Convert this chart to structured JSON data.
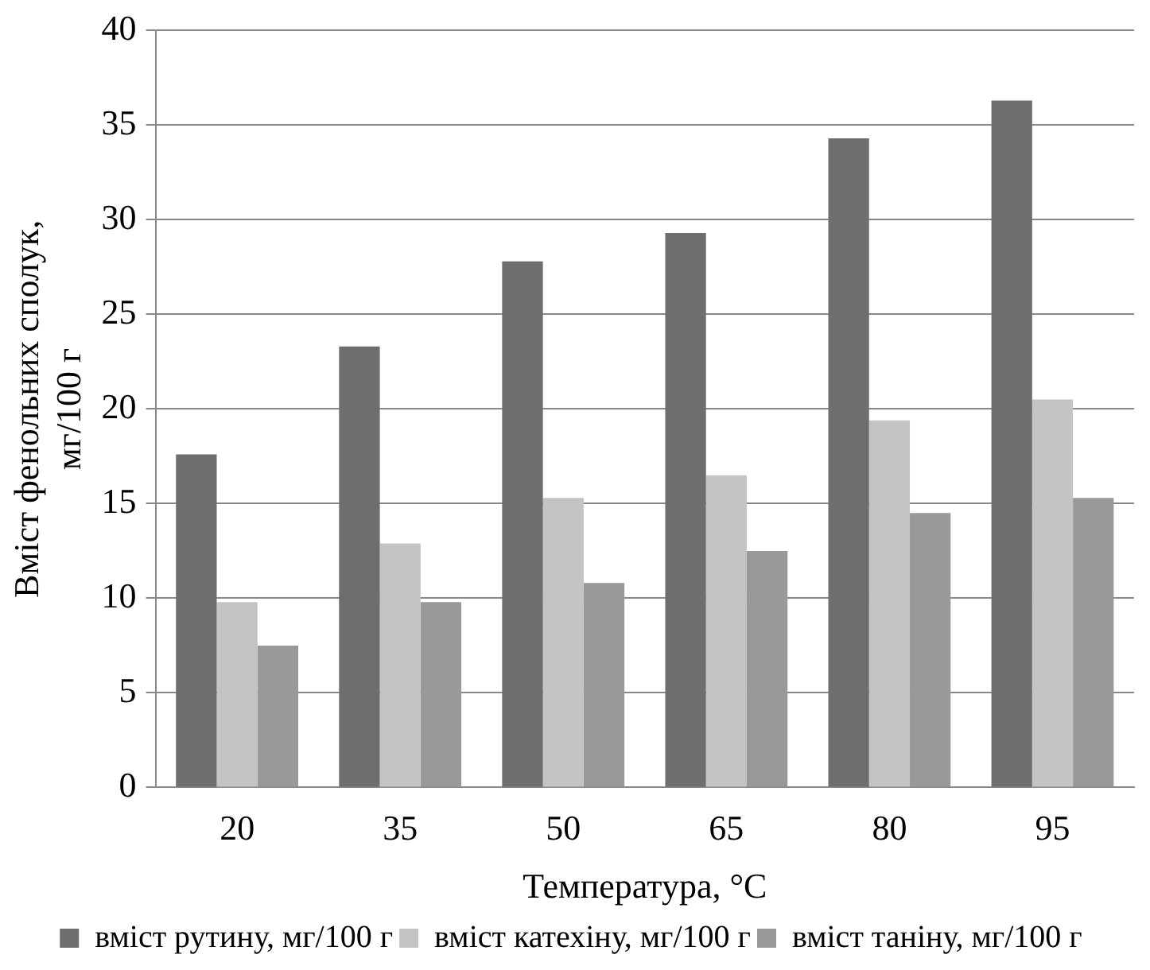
{
  "chart_data": {
    "type": "bar",
    "xlabel": "Температура, °C",
    "ylabel": "Вміст фенольних сполук, мг/100 г",
    "categories": [
      "20",
      "35",
      "50",
      "65",
      "80",
      "95"
    ],
    "series": [
      {
        "name": "вміст рутину, мг/100 г",
        "color": "#6e6e6e",
        "values": [
          17.6,
          23.3,
          27.8,
          29.3,
          34.3,
          36.3
        ]
      },
      {
        "name": "вміст катехіну, мг/100 г",
        "color": "#c4c4c4",
        "values": [
          9.8,
          12.9,
          15.3,
          16.5,
          19.4,
          20.5
        ]
      },
      {
        "name": "вміст таніну, мг/100 г",
        "color": "#999999",
        "values": [
          7.5,
          9.8,
          10.8,
          12.5,
          14.5,
          15.3
        ]
      }
    ],
    "ylim": [
      0,
      40
    ],
    "yticks": [
      0,
      5,
      10,
      15,
      20,
      25,
      30,
      35,
      40
    ],
    "grid": "y",
    "legend": "bottom"
  }
}
